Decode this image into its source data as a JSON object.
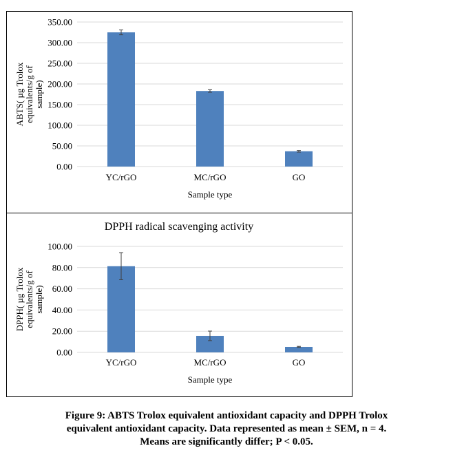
{
  "chart_data": [
    {
      "type": "bar",
      "title": "",
      "xlabel": "Sample type",
      "ylabel": [
        "ABTS( µg Trolox",
        "equivalents/g of",
        "sample)"
      ],
      "categories": [
        "YC/rGO",
        "MC/rGO",
        "GO"
      ],
      "values": [
        325,
        183,
        37
      ],
      "errors": [
        6,
        3,
        2
      ],
      "ylim": [
        0,
        350
      ],
      "yticks": [
        "0.00",
        "50.00",
        "100.00",
        "150.00",
        "200.00",
        "250.00",
        "300.00",
        "350.00"
      ],
      "ystep": 50,
      "grid": true,
      "color": "#4f81bd"
    },
    {
      "type": "bar",
      "title": "DPPH radical scavenging activity",
      "xlabel": "Sample type",
      "ylabel": [
        "DPPH( µg Trolox",
        "equivalents/g of",
        "sample)"
      ],
      "categories": [
        "YC/rGO",
        "MC/rGO",
        "GO"
      ],
      "values": [
        81.3,
        15.6,
        5.2
      ],
      "errors": [
        12.8,
        4.5,
        0.5
      ],
      "ylim": [
        0,
        100
      ],
      "yticks": [
        "0.00",
        "20.00",
        "40.00",
        "60.00",
        "80.00",
        "100.00"
      ],
      "ystep": 20,
      "grid": true,
      "color": "#4f81bd"
    }
  ],
  "caption": [
    "Figure 9: ABTS Trolox equivalent antioxidant capacity and DPPH Trolox",
    "equivalent antioxidant capacity. Data represented as mean ± SEM, n = 4.",
    "Means are significantly differ; P < 0.05."
  ]
}
